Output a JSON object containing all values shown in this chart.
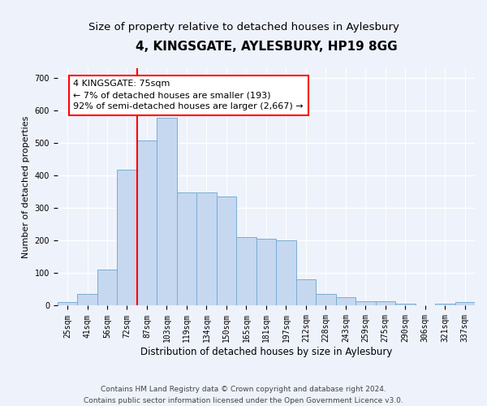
{
  "title": "4, KINGSGATE, AYLESBURY, HP19 8GG",
  "subtitle": "Size of property relative to detached houses in Aylesbury",
  "xlabel": "Distribution of detached houses by size in Aylesbury",
  "ylabel": "Number of detached properties",
  "categories": [
    "25sqm",
    "41sqm",
    "56sqm",
    "72sqm",
    "87sqm",
    "103sqm",
    "119sqm",
    "134sqm",
    "150sqm",
    "165sqm",
    "181sqm",
    "197sqm",
    "212sqm",
    "228sqm",
    "243sqm",
    "259sqm",
    "275sqm",
    "290sqm",
    "306sqm",
    "321sqm",
    "337sqm"
  ],
  "values": [
    10,
    35,
    112,
    418,
    507,
    578,
    348,
    348,
    335,
    210,
    205,
    200,
    80,
    35,
    25,
    13,
    13,
    5,
    0,
    7,
    10
  ],
  "bar_color": "#c5d8f0",
  "bar_edge_color": "#7aadd4",
  "property_line_color": "red",
  "property_line_xindex": 3.5,
  "annotation_text": "4 KINGSGATE: 75sqm\n← 7% of detached houses are smaller (193)\n92% of semi-detached houses are larger (2,667) →",
  "annotation_box_color": "white",
  "annotation_box_edge_color": "red",
  "ylim": [
    0,
    730
  ],
  "yticks": [
    0,
    100,
    200,
    300,
    400,
    500,
    600,
    700
  ],
  "footer_line1": "Contains HM Land Registry data © Crown copyright and database right 2024.",
  "footer_line2": "Contains public sector information licensed under the Open Government Licence v3.0.",
  "background_color": "#eef2fb",
  "plot_background_color": "#eef2fb",
  "grid_color": "#ffffff",
  "title_fontsize": 11,
  "subtitle_fontsize": 9.5,
  "xlabel_fontsize": 8.5,
  "ylabel_fontsize": 8,
  "tick_fontsize": 7,
  "annotation_fontsize": 8,
  "footer_fontsize": 6.5
}
